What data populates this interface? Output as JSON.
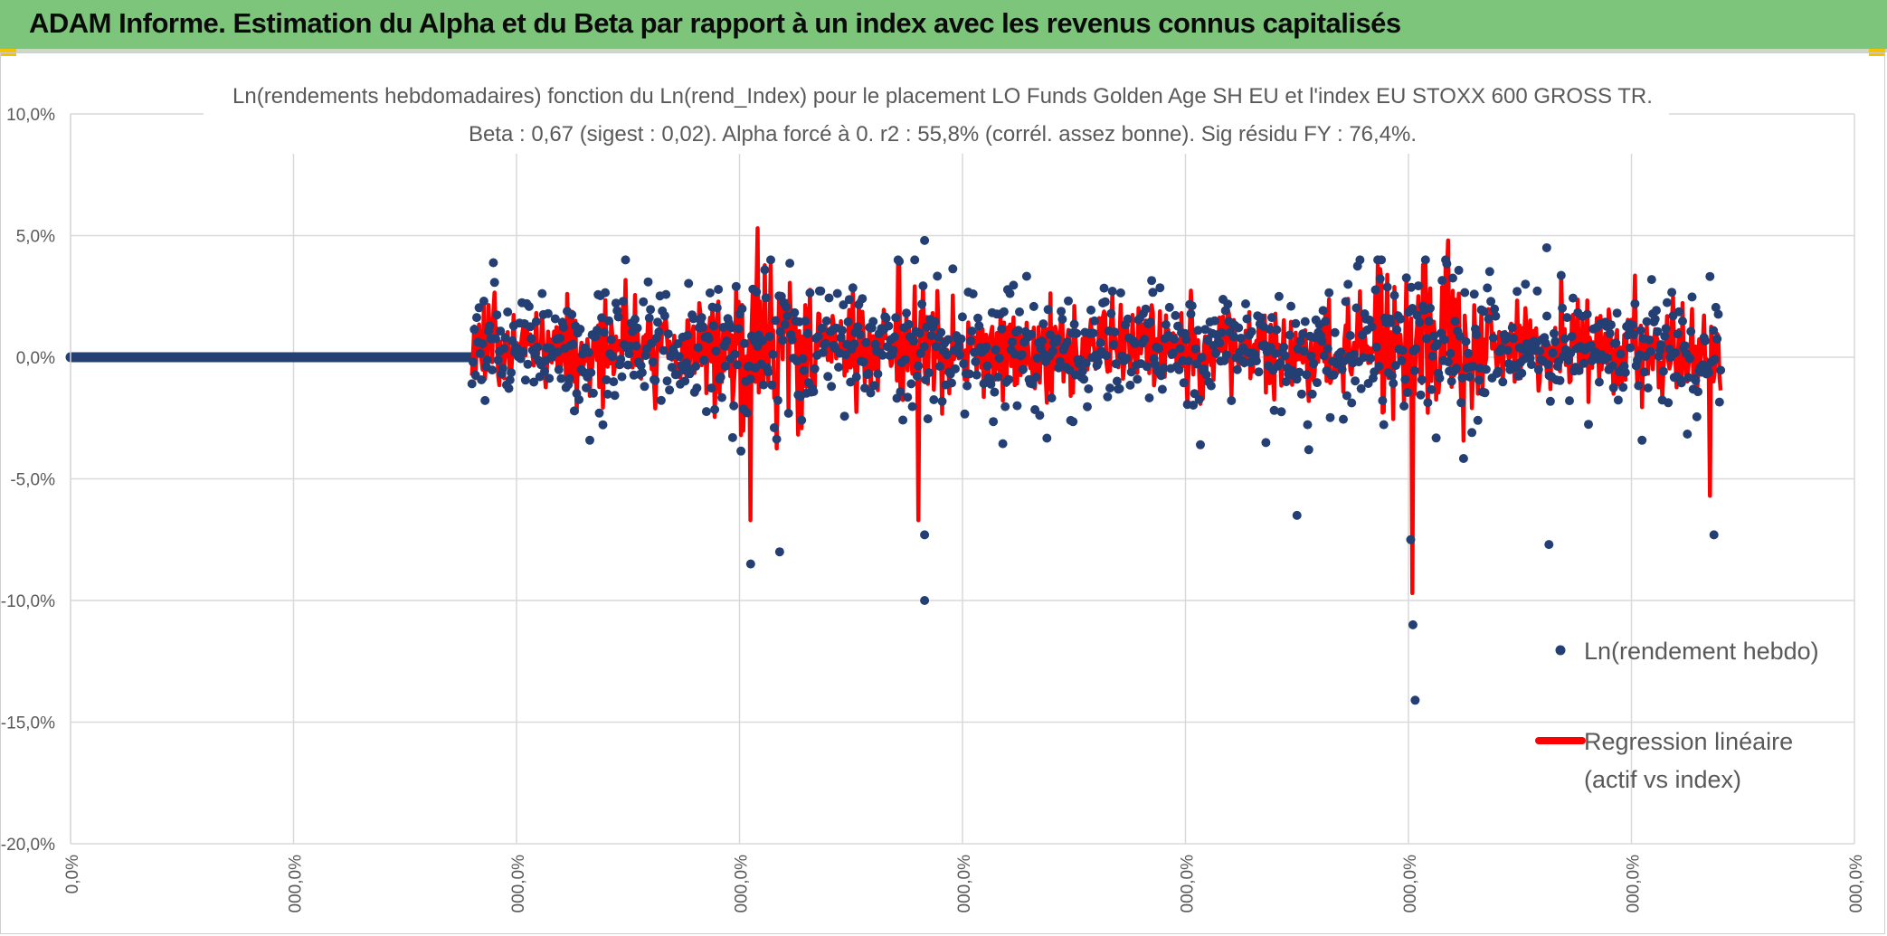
{
  "header": {
    "title": "ADAM Informe. Estimation du Alpha et du Beta par rapport à un index avec les revenus connus capitalisés"
  },
  "colors": {
    "banner": "#7dc57a",
    "scatter": "#243f73",
    "regression": "#ff0000",
    "grid": "#d9d9d9",
    "text": "#595959"
  },
  "chart_data": {
    "type": "scatter",
    "title_line1": "Ln(rendements hebdomadaires) fonction du Ln(rend_Index) pour le placement LO Funds Golden Age SH EU et l'index EU STOXX 600 GROSS TR.",
    "title_line2": "Beta : 0,67 (sigest : 0,02). Alpha forcé à 0. r2 : 55,8% (corrél. assez bonne). Sig résidu FY : 76,4%.",
    "y_ticks": [
      "10,0%",
      "5,0%",
      "0,0%",
      "-5,0%",
      "-10,0%",
      "-15,0%",
      "-20,0%"
    ],
    "y_values": [
      10,
      5,
      0,
      -5,
      -10,
      -15,
      -20
    ],
    "ylim": [
      -20,
      10
    ],
    "x_ticks": [
      "0,0%",
      "000,0%",
      "000,0%",
      "000,0%",
      "000,0%",
      "000,0%",
      "000,0%",
      "000,0%",
      "000,0%"
    ],
    "grid": true,
    "legend_position": "right",
    "series": [
      {
        "name": "Ln(rendement hebdo)",
        "kind": "scatter"
      },
      {
        "name_line1": "Regression linéaire",
        "name_line2": "(actif vs index)",
        "kind": "line"
      }
    ],
    "flat_segment": {
      "x_start": 0,
      "x_end": 1.8,
      "y": 0
    },
    "data_x_range": [
      1.8,
      7.4
    ],
    "extremes": [
      {
        "x": 3.05,
        "y": -8.5
      },
      {
        "x": 3.18,
        "y": -8.0
      },
      {
        "x": 3.83,
        "y": 4.8
      },
      {
        "x": 3.83,
        "y": -10.0
      },
      {
        "x": 3.83,
        "y": -7.3
      },
      {
        "x": 6.02,
        "y": -11.0
      },
      {
        "x": 6.03,
        "y": -14.1
      },
      {
        "x": 6.01,
        "y": -7.5
      },
      {
        "x": 5.5,
        "y": -6.5
      },
      {
        "x": 7.37,
        "y": -7.3
      },
      {
        "x": 6.62,
        "y": 4.5
      },
      {
        "x": 6.63,
        "y": -7.7
      }
    ],
    "regression_extremes": [
      {
        "x": 3.08,
        "y": 5.3
      },
      {
        "x": 3.05,
        "y": -6.7
      },
      {
        "x": 3.8,
        "y": -6.7
      },
      {
        "x": 6.02,
        "y": -9.7
      },
      {
        "x": 6.18,
        "y": 4.8
      },
      {
        "x": 7.35,
        "y": -5.7
      }
    ]
  }
}
